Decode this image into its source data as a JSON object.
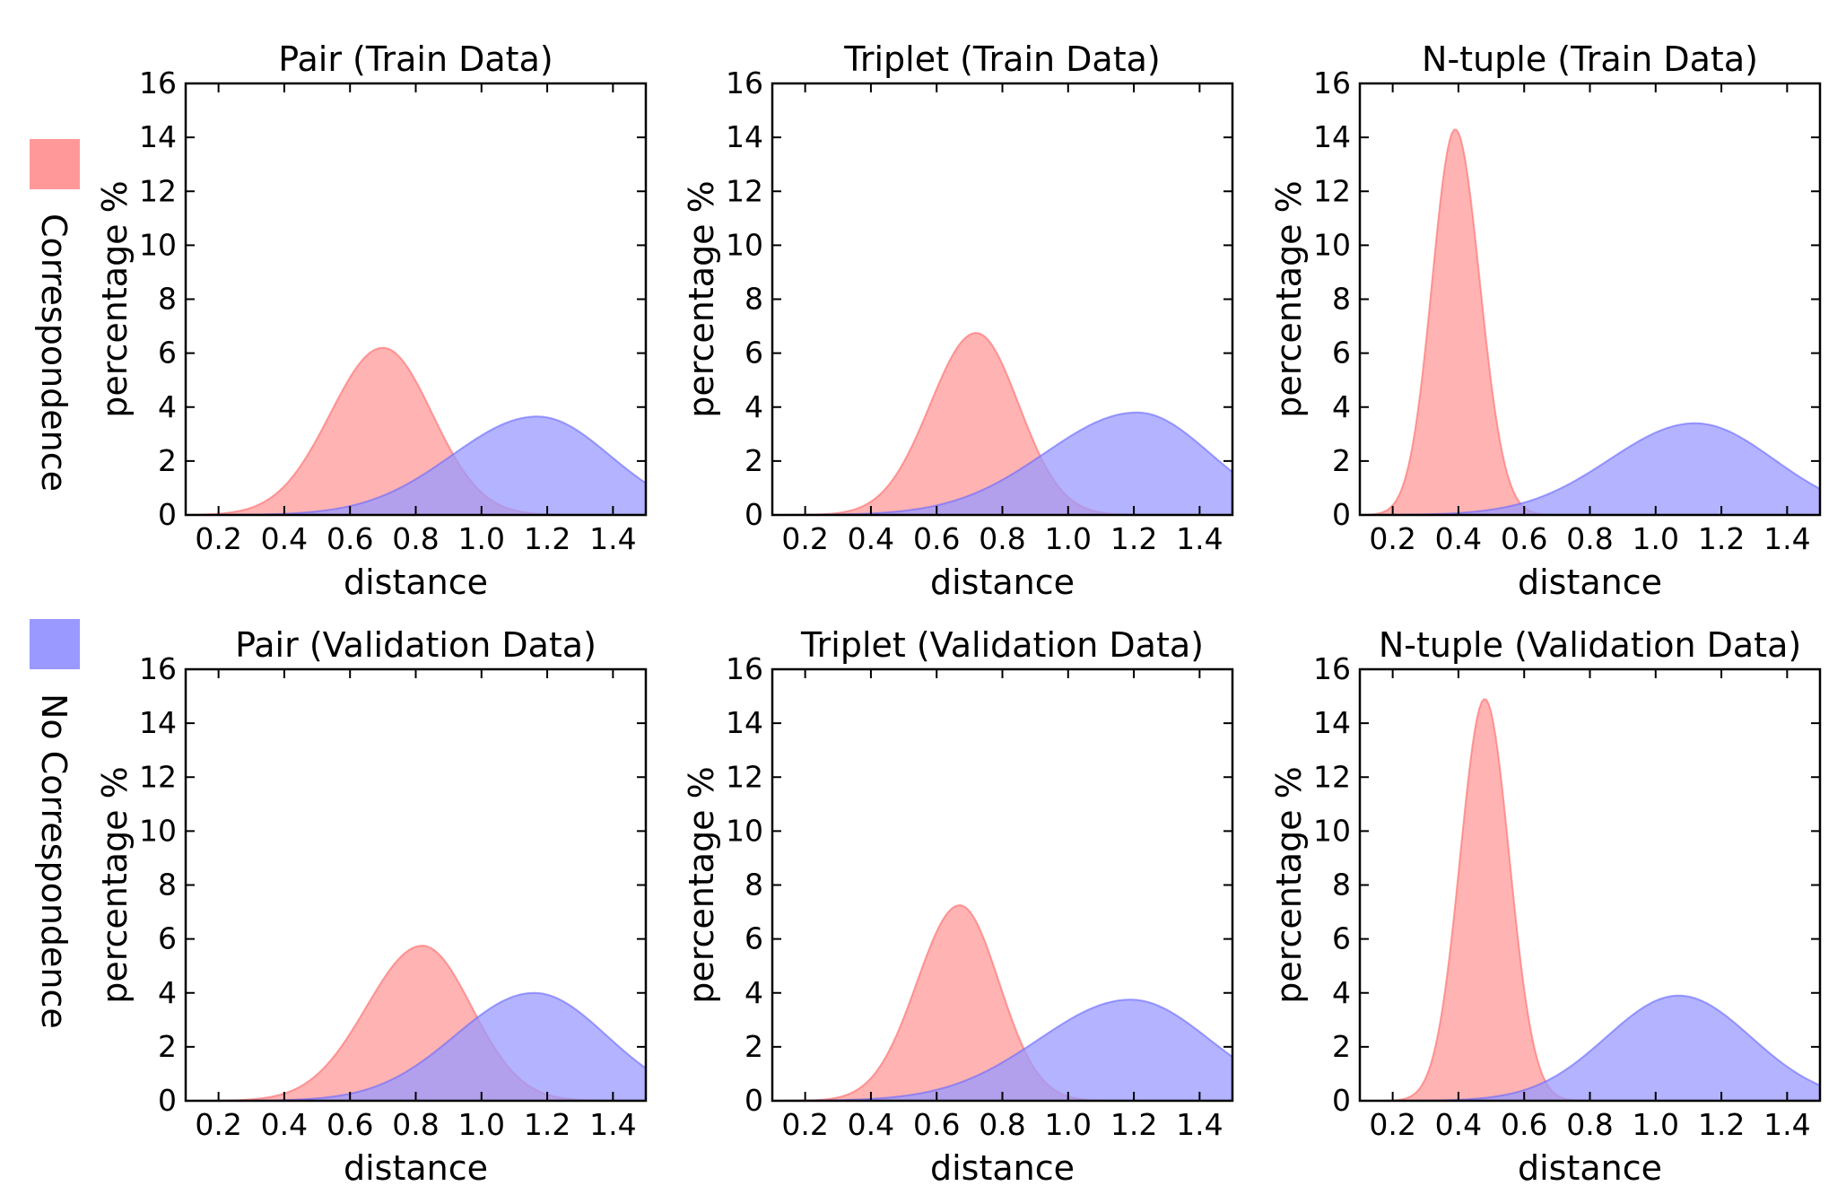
{
  "legend": {
    "items": [
      {
        "label": "Correspondence",
        "color": "#ff9999"
      },
      {
        "label": "No Correspondence",
        "color": "#9999ff"
      }
    ],
    "placement": "left, vertical"
  },
  "chart_data": [
    {
      "type": "area",
      "title": "Pair (Train Data)",
      "xlabel": "distance",
      "ylabel": "percentage %",
      "xlim": [
        0.1,
        1.5
      ],
      "ylim": [
        0,
        16
      ],
      "xticks": [
        "0.2",
        "0.4",
        "0.6",
        "0.8",
        "1.0",
        "1.2",
        "1.4"
      ],
      "yticks": [
        "0",
        "2",
        "4",
        "6",
        "8",
        "10",
        "12",
        "14",
        "16"
      ],
      "series": [
        {
          "name": "Correspondence",
          "color": "#ff9999",
          "peak": 6.2,
          "center": 0.7,
          "sigma_left": 0.16,
          "sigma_right": 0.15
        },
        {
          "name": "No Correspondence",
          "color": "#9999ff",
          "peak": 3.65,
          "center": 1.17,
          "sigma_left": 0.26,
          "sigma_right": 0.22
        }
      ]
    },
    {
      "type": "area",
      "title": "Triplet (Train Data)",
      "xlabel": "distance",
      "ylabel": "percentage %",
      "xlim": [
        0.1,
        1.5
      ],
      "ylim": [
        0,
        16
      ],
      "xticks": [
        "0.2",
        "0.4",
        "0.6",
        "0.8",
        "1.0",
        "1.2",
        "1.4"
      ],
      "yticks": [
        "0",
        "2",
        "4",
        "6",
        "8",
        "10",
        "12",
        "14",
        "16"
      ],
      "series": [
        {
          "name": "Correspondence",
          "color": "#ff9999",
          "peak": 6.75,
          "center": 0.72,
          "sigma_left": 0.14,
          "sigma_right": 0.13
        },
        {
          "name": "No Correspondence",
          "color": "#9999ff",
          "peak": 3.8,
          "center": 1.21,
          "sigma_left": 0.28,
          "sigma_right": 0.22
        }
      ]
    },
    {
      "type": "area",
      "title": "N-tuple (Train Data)",
      "xlabel": "distance",
      "ylabel": "percentage %",
      "xlim": [
        0.1,
        1.5
      ],
      "ylim": [
        0,
        16
      ],
      "xticks": [
        "0.2",
        "0.4",
        "0.6",
        "0.8",
        "1.0",
        "1.2",
        "1.4"
      ],
      "yticks": [
        "0",
        "2",
        "4",
        "6",
        "8",
        "10",
        "12",
        "14",
        "16"
      ],
      "series": [
        {
          "name": "Correspondence",
          "color": "#ff9999",
          "peak": 14.3,
          "center": 0.39,
          "sigma_left": 0.07,
          "sigma_right": 0.075
        },
        {
          "name": "No Correspondence",
          "color": "#9999ff",
          "peak": 3.4,
          "center": 1.12,
          "sigma_left": 0.26,
          "sigma_right": 0.24
        }
      ]
    },
    {
      "type": "area",
      "title": "Pair (Validation Data)",
      "xlabel": "distance",
      "ylabel": "percentage %",
      "xlim": [
        0.1,
        1.5
      ],
      "ylim": [
        0,
        16
      ],
      "xticks": [
        "0.2",
        "0.4",
        "0.6",
        "0.8",
        "1.0",
        "1.2",
        "1.4"
      ],
      "yticks": [
        "0",
        "2",
        "4",
        "6",
        "8",
        "10",
        "12",
        "14",
        "16"
      ],
      "series": [
        {
          "name": "Correspondence",
          "color": "#ff9999",
          "peak": 5.75,
          "center": 0.82,
          "sigma_left": 0.17,
          "sigma_right": 0.15
        },
        {
          "name": "No Correspondence",
          "color": "#9999ff",
          "peak": 4.0,
          "center": 1.16,
          "sigma_left": 0.24,
          "sigma_right": 0.22
        }
      ]
    },
    {
      "type": "area",
      "title": "Triplet (Validation Data)",
      "xlabel": "distance",
      "ylabel": "percentage %",
      "xlim": [
        0.1,
        1.5
      ],
      "ylim": [
        0,
        16
      ],
      "xticks": [
        "0.2",
        "0.4",
        "0.6",
        "0.8",
        "1.0",
        "1.2",
        "1.4"
      ],
      "yticks": [
        "0",
        "2",
        "4",
        "6",
        "8",
        "10",
        "12",
        "14",
        "16"
      ],
      "series": [
        {
          "name": "Correspondence",
          "color": "#ff9999",
          "peak": 7.25,
          "center": 0.67,
          "sigma_left": 0.13,
          "sigma_right": 0.12
        },
        {
          "name": "No Correspondence",
          "color": "#9999ff",
          "peak": 3.75,
          "center": 1.19,
          "sigma_left": 0.28,
          "sigma_right": 0.24
        }
      ]
    },
    {
      "type": "area",
      "title": "N-tuple (Validation Data)",
      "xlabel": "distance",
      "ylabel": "percentage %",
      "xlim": [
        0.1,
        1.5
      ],
      "ylim": [
        0,
        16
      ],
      "xticks": [
        "0.2",
        "0.4",
        "0.6",
        "0.8",
        "1.0",
        "1.2",
        "1.4"
      ],
      "yticks": [
        "0",
        "2",
        "4",
        "6",
        "8",
        "10",
        "12",
        "14",
        "16"
      ],
      "series": [
        {
          "name": "Correspondence",
          "color": "#ff9999",
          "peak": 14.9,
          "center": 0.48,
          "sigma_left": 0.075,
          "sigma_right": 0.075
        },
        {
          "name": "No Correspondence",
          "color": "#9999ff",
          "peak": 3.9,
          "center": 1.07,
          "sigma_left": 0.22,
          "sigma_right": 0.22
        }
      ]
    }
  ]
}
